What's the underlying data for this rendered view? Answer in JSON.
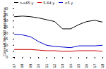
{
  "chart_data": {
    "type": "line",
    "x": [
      2007,
      2008,
      2009,
      2010,
      2011,
      2012,
      2013,
      2014,
      2015,
      2016,
      2017,
      2018
    ],
    "series": [
      {
        "name": ">=65 y",
        "color": "#000000",
        "values": [
          33.5,
          34.0,
          33.5,
          32.5,
          31.0,
          29.5,
          23.5,
          23.5,
          27.0,
          29.5,
          30.5,
          29.0
        ]
      },
      {
        "name": "5-64 y",
        "color": "#cc0000",
        "values": [
          6.5,
          6.5,
          6.5,
          6.0,
          5.5,
          5.5,
          5.0,
          5.0,
          5.5,
          5.5,
          5.5,
          5.0
        ]
      },
      {
        "name": "<5 y",
        "color": "#0000cc",
        "values": [
          19.0,
          18.5,
          17.0,
          13.0,
          10.0,
          9.0,
          8.5,
          8.0,
          9.5,
          9.5,
          9.5,
          10.0
        ]
      }
    ],
    "ylabel": "Cases/100,000 population",
    "xlim": [
      2007,
      2018
    ],
    "xticks": [
      2007,
      2008,
      2009,
      2010,
      2011,
      2012,
      2013,
      2014,
      2015,
      2016,
      2017,
      2018
    ],
    "ylim": [
      0,
      40
    ],
    "yticks": [
      0,
      5,
      10,
      15,
      20,
      25,
      30,
      35,
      40
    ],
    "legend": "upper left"
  }
}
